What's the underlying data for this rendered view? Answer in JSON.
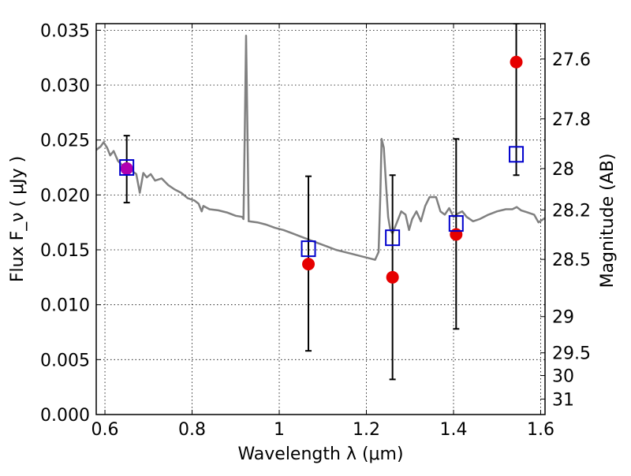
{
  "chart_data": {
    "type": "scatter",
    "xlabel": "Wavelength  λ (μm)",
    "ylabel_left": "Flux  F_ν  ( μJy )",
    "ylabel_right": "Magnitude (AB)",
    "xlim": [
      0.58,
      1.61
    ],
    "ylim": [
      0.0,
      0.0356
    ],
    "grid": true,
    "x_ticks": [
      0.6,
      0.8,
      1.0,
      1.2,
      1.4,
      1.6
    ],
    "x_tick_labels": [
      "0.6",
      "0.8",
      "1",
      "1.2",
      "1.4",
      "1.6"
    ],
    "y_ticks": [
      0.0,
      0.005,
      0.01,
      0.015,
      0.02,
      0.025,
      0.03,
      0.035
    ],
    "y_tick_labels": [
      "0.000",
      "0.005",
      "0.010",
      "0.015",
      "0.020",
      "0.025",
      "0.030",
      "0.035"
    ],
    "right_axis_ticks": [
      {
        "label": "27.6",
        "flux": 0.03238
      },
      {
        "label": "27.8",
        "flux": 0.02693
      },
      {
        "label": "28",
        "flux": 0.0224
      },
      {
        "label": "28.2",
        "flux": 0.01863
      },
      {
        "label": "28.5",
        "flux": 0.01413
      },
      {
        "label": "29",
        "flux": 0.00892
      },
      {
        "label": "29.5",
        "flux": 0.00562
      },
      {
        "label": "30",
        "flux": 0.00355
      },
      {
        "label": "31",
        "flux": 0.00141
      }
    ],
    "series": [
      {
        "kind": "line",
        "color": "#808080",
        "points": [
          [
            0.58,
            0.0241
          ],
          [
            0.59,
            0.0244
          ],
          [
            0.597,
            0.0248
          ],
          [
            0.605,
            0.0243
          ],
          [
            0.612,
            0.0236
          ],
          [
            0.62,
            0.024
          ],
          [
            0.63,
            0.0231
          ],
          [
            0.64,
            0.0227
          ],
          [
            0.648,
            0.0228
          ],
          [
            0.656,
            0.0226
          ],
          [
            0.665,
            0.0221
          ],
          [
            0.672,
            0.0219
          ],
          [
            0.68,
            0.0202
          ],
          [
            0.688,
            0.022
          ],
          [
            0.696,
            0.0216
          ],
          [
            0.705,
            0.0219
          ],
          [
            0.715,
            0.0213
          ],
          [
            0.73,
            0.0215
          ],
          [
            0.745,
            0.0209
          ],
          [
            0.76,
            0.0205
          ],
          [
            0.775,
            0.0202
          ],
          [
            0.79,
            0.0197
          ],
          [
            0.805,
            0.0195
          ],
          [
            0.815,
            0.0192
          ],
          [
            0.822,
            0.0185
          ],
          [
            0.826,
            0.019
          ],
          [
            0.84,
            0.0187
          ],
          [
            0.86,
            0.0186
          ],
          [
            0.88,
            0.0184
          ],
          [
            0.9,
            0.0181
          ],
          [
            0.915,
            0.018
          ],
          [
            0.918,
            0.0178
          ],
          [
            0.921,
            0.026
          ],
          [
            0.924,
            0.0345
          ],
          [
            0.927,
            0.026
          ],
          [
            0.93,
            0.0176
          ],
          [
            0.95,
            0.0175
          ],
          [
            0.97,
            0.0173
          ],
          [
            0.99,
            0.017
          ],
          [
            1.01,
            0.0168
          ],
          [
            1.03,
            0.0165
          ],
          [
            1.05,
            0.0162
          ],
          [
            1.07,
            0.0159
          ],
          [
            1.09,
            0.0156
          ],
          [
            1.11,
            0.0153
          ],
          [
            1.13,
            0.015
          ],
          [
            1.15,
            0.0148
          ],
          [
            1.17,
            0.0146
          ],
          [
            1.19,
            0.0144
          ],
          [
            1.21,
            0.0142
          ],
          [
            1.22,
            0.0141
          ],
          [
            1.228,
            0.0148
          ],
          [
            1.232,
            0.02
          ],
          [
            1.235,
            0.0251
          ],
          [
            1.24,
            0.0243
          ],
          [
            1.245,
            0.021
          ],
          [
            1.25,
            0.018
          ],
          [
            1.255,
            0.0168
          ],
          [
            1.26,
            0.0165
          ],
          [
            1.27,
            0.0175
          ],
          [
            1.28,
            0.0185
          ],
          [
            1.29,
            0.0182
          ],
          [
            1.298,
            0.0168
          ],
          [
            1.305,
            0.0178
          ],
          [
            1.315,
            0.0185
          ],
          [
            1.325,
            0.0176
          ],
          [
            1.335,
            0.019
          ],
          [
            1.345,
            0.0198
          ],
          [
            1.36,
            0.0198
          ],
          [
            1.37,
            0.0185
          ],
          [
            1.38,
            0.0182
          ],
          [
            1.39,
            0.0188
          ],
          [
            1.4,
            0.018
          ],
          [
            1.41,
            0.0183
          ],
          [
            1.42,
            0.0185
          ],
          [
            1.43,
            0.018
          ],
          [
            1.445,
            0.0176
          ],
          [
            1.46,
            0.0178
          ],
          [
            1.48,
            0.0182
          ],
          [
            1.5,
            0.0185
          ],
          [
            1.52,
            0.0187
          ],
          [
            1.535,
            0.0187
          ],
          [
            1.545,
            0.0189
          ],
          [
            1.555,
            0.0186
          ],
          [
            1.57,
            0.0184
          ],
          [
            1.585,
            0.0182
          ],
          [
            1.595,
            0.0175
          ],
          [
            1.61,
            0.0179
          ]
        ]
      },
      {
        "kind": "points",
        "marker": "circle",
        "color": "#e60000",
        "x": [
          0.65,
          1.067,
          1.26,
          1.406,
          1.544
        ],
        "y": [
          0.0224,
          0.0137,
          0.0125,
          0.0164,
          0.0321
        ],
        "yerr_low": [
          0.0193,
          0.0058,
          0.0032,
          0.0078,
          0.0218
        ],
        "yerr_high": [
          0.0254,
          0.0217,
          0.0218,
          0.0251,
          0.0356
        ]
      },
      {
        "kind": "points",
        "marker": "open-square",
        "color": "#0000cc",
        "x": [
          0.65,
          1.067,
          1.26,
          1.406,
          1.544
        ],
        "y": [
          0.0225,
          0.0151,
          0.0161,
          0.0174,
          0.0237
        ]
      }
    ]
  }
}
